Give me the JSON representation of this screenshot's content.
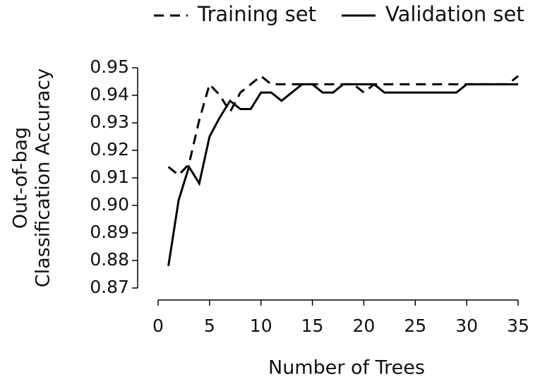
{
  "chart_data": {
    "type": "line",
    "xlabel": "Number of Trees",
    "ylabel": [
      "Out-of-bag",
      "Classification Accuracy"
    ],
    "x": [
      1,
      2,
      3,
      4,
      5,
      6,
      7,
      8,
      9,
      10,
      11,
      12,
      13,
      14,
      15,
      16,
      17,
      18,
      19,
      20,
      21,
      22,
      23,
      24,
      25,
      26,
      27,
      28,
      29,
      30,
      31,
      32,
      33,
      34,
      35
    ],
    "series": [
      {
        "name": "Training set",
        "color": "#000000",
        "dash": true,
        "values": [
          0.914,
          0.911,
          0.915,
          0.931,
          0.944,
          0.94,
          0.934,
          0.941,
          0.944,
          0.947,
          0.944,
          0.944,
          0.944,
          0.944,
          0.944,
          0.944,
          0.944,
          0.944,
          0.944,
          0.941,
          0.944,
          0.944,
          0.944,
          0.944,
          0.944,
          0.944,
          0.944,
          0.944,
          0.944,
          0.944,
          0.944,
          0.944,
          0.944,
          0.944,
          0.947
        ]
      },
      {
        "name": "Validation set",
        "color": "#000000",
        "dash": false,
        "values": [
          0.878,
          0.902,
          0.914,
          0.908,
          0.925,
          0.932,
          0.938,
          0.935,
          0.935,
          0.941,
          0.941,
          0.938,
          0.941,
          0.944,
          0.944,
          0.941,
          0.941,
          0.944,
          0.944,
          0.944,
          0.944,
          0.941,
          0.941,
          0.941,
          0.941,
          0.941,
          0.941,
          0.941,
          0.941,
          0.944,
          0.944,
          0.944,
          0.944,
          0.944,
          0.944
        ]
      }
    ],
    "xlim": [
      0,
      35
    ],
    "xticks": [
      0,
      5,
      10,
      15,
      20,
      25,
      30,
      35
    ],
    "ylim": [
      0.87,
      0.95
    ],
    "yticks": [
      0.87,
      0.88,
      0.89,
      {
        "value": 0.9,
        "label": "0.90"
      },
      0.91,
      0.92,
      0.93,
      0.94,
      0.95
    ],
    "legend": "top"
  }
}
